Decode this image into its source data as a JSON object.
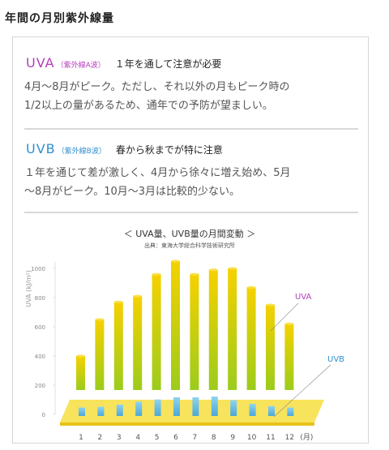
{
  "heading": "年間の月別紫外線量",
  "uva": {
    "code": "UVA",
    "sub": "（紫外線A波）",
    "title": "１年を通して注意が必要",
    "body_line1": "4月〜8月がピーク。ただし、それ以外の月もピーク時の",
    "body_line2": "1/2以上の量があるため、通年での予防が望ましい。"
  },
  "uvb": {
    "code": "UVB",
    "sub": "（紫外線B波）",
    "title": "春から秋までが特に注意",
    "body_line1": "１年を通じて差が激しく、4月から徐々に増え始め、5月",
    "body_line2": "〜8月がピーク。10月〜3月は比較的少ない。"
  },
  "colors": {
    "uva_label": "#b53fba",
    "uvb_label": "#2f8fd0",
    "bar_top": "#f6d100",
    "bar_bottom": "#9ccc1c",
    "uvb_bar": "#6ec0e6",
    "platform": "#f7e04a"
  },
  "chart_data": {
    "type": "bar",
    "title": "＜ UVA量、UVB量の月間変動 ＞",
    "subtitle": "出典：東海大学総合科学技術研究所",
    "ylabel": "UVA (kJ/m²)",
    "ylim": [
      0,
      1000
    ],
    "yticks": [
      0,
      200,
      400,
      600,
      800,
      1000
    ],
    "categories": [
      "1",
      "2",
      "3",
      "4",
      "5",
      "6",
      "7",
      "8",
      "9",
      "10",
      "11",
      "12"
    ],
    "xunit": "(月)",
    "series": [
      {
        "name": "UVA",
        "values": [
          400,
          650,
          770,
          810,
          960,
          1050,
          960,
          990,
          1000,
          870,
          750,
          620
        ]
      },
      {
        "name": "UVB",
        "values": [
          30,
          35,
          50,
          70,
          85,
          100,
          100,
          105,
          80,
          55,
          40,
          30
        ]
      }
    ]
  }
}
